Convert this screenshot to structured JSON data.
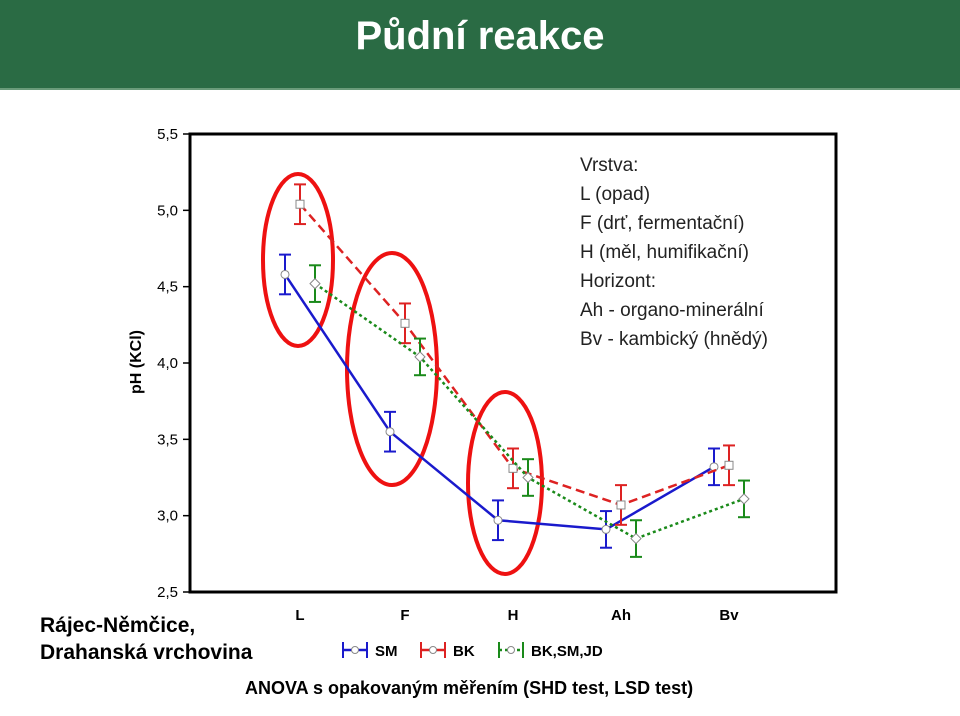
{
  "page": {
    "title": "Půdní reakce",
    "site_line1": "Rájec-Němčice,",
    "site_line2": "Drahanská vrchovina",
    "method_note": "ANOVA s opakovaným měřením (SHD test, LSD test)",
    "ylabel": "pH (KCl)"
  },
  "annotation": {
    "lines": [
      "Vrstva:",
      "L (opad)",
      "F (drť, fermentační)",
      "H (měl, humifikační)",
      "Horizont:",
      "Ah - organo-minerální",
      "Bv - kambický (hnědý)"
    ]
  },
  "colors": {
    "title_bg": "#2a6b44",
    "SM": "#1a1acc",
    "BK": "#dd2222",
    "BKSMJD": "#1a8a1a",
    "highlight": "#ee1111"
  },
  "chart_data": {
    "type": "line",
    "categories": [
      "L",
      "F",
      "H",
      "Ah",
      "Bv"
    ],
    "ylim": [
      2.5,
      5.5
    ],
    "yticks": [
      "2,5",
      "3,0",
      "3,5",
      "4,0",
      "4,5",
      "5,0",
      "5,5"
    ],
    "ytick_values": [
      2.5,
      3.0,
      3.5,
      4.0,
      4.5,
      5.0,
      5.5
    ],
    "xlabel": "",
    "ylabel": "pH (KCl)",
    "grid": false,
    "legend_position": "bottom",
    "highlight_circles": [
      "L",
      "F",
      "H"
    ],
    "series": [
      {
        "name": "SM",
        "values": [
          4.58,
          3.55,
          2.97,
          2.91,
          3.32
        ],
        "err": [
          0.13,
          0.13,
          0.13,
          0.12,
          0.12
        ],
        "dash": "solid"
      },
      {
        "name": "BK",
        "values": [
          5.04,
          4.26,
          3.31,
          3.07,
          3.33
        ],
        "err": [
          0.13,
          0.13,
          0.13,
          0.13,
          0.13
        ],
        "dash": "dashed"
      },
      {
        "name": "BK,SM,JD",
        "values": [
          4.52,
          4.04,
          3.25,
          2.85,
          3.11
        ],
        "err": [
          0.12,
          0.12,
          0.12,
          0.12,
          0.12
        ],
        "dash": "dotted"
      }
    ]
  }
}
